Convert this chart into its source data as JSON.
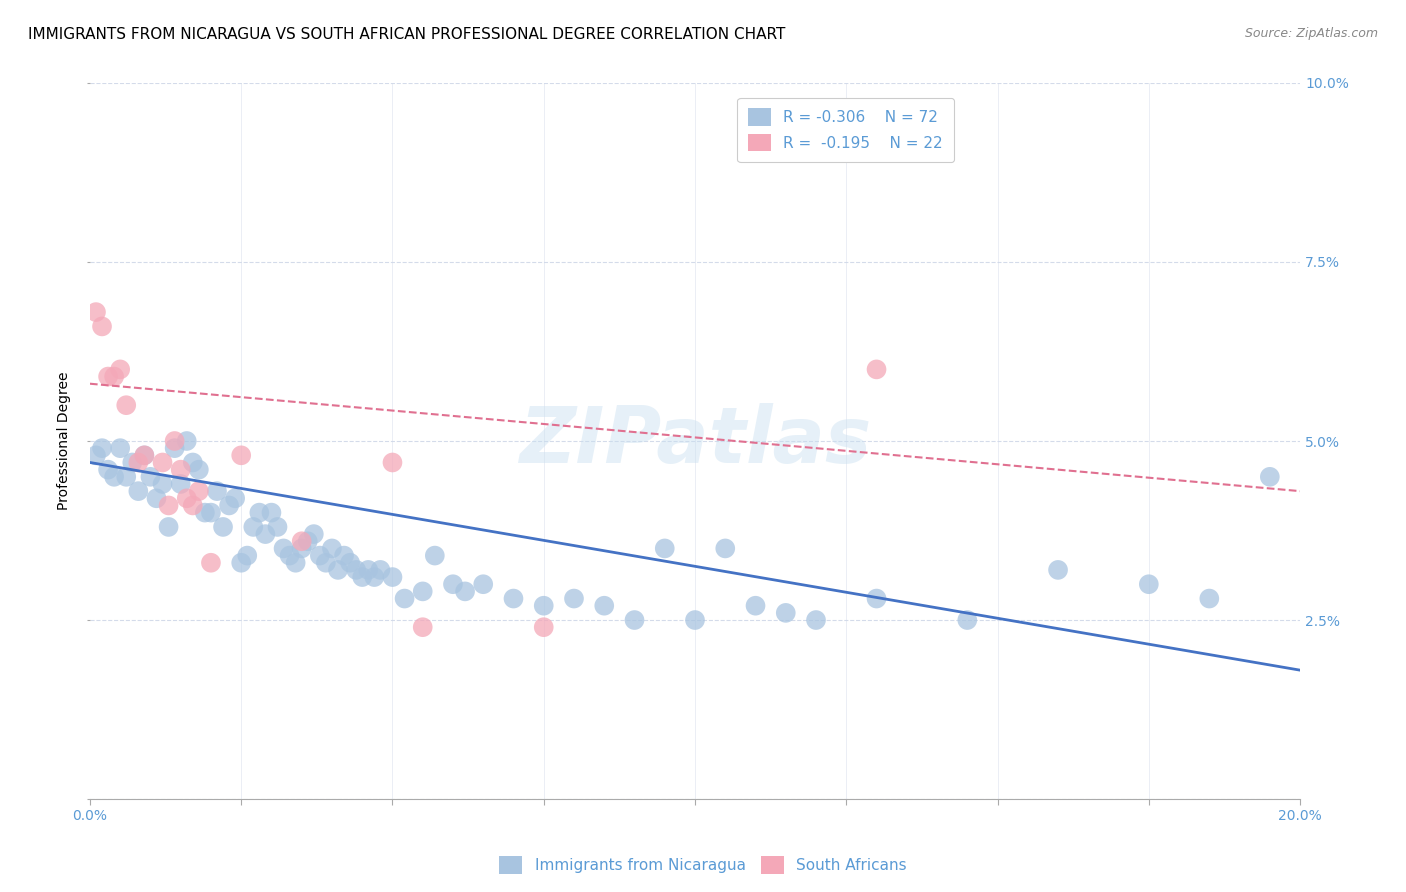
{
  "title": "IMMIGRANTS FROM NICARAGUA VS SOUTH AFRICAN PROFESSIONAL DEGREE CORRELATION CHART",
  "source": "Source: ZipAtlas.com",
  "ylabel": "Professional Degree",
  "watermark": "ZIPatlas",
  "blue_R": "-0.306",
  "blue_N": "72",
  "pink_R": "-0.195",
  "pink_N": "22",
  "blue_color": "#a8c4e0",
  "pink_color": "#f4a8b8",
  "blue_line_color": "#4472c4",
  "pink_line_color": "#e07090",
  "axis_color": "#5b9bd5",
  "grid_color": "#d0d8e8",
  "legend_label_blue": "Immigrants from Nicaragua",
  "legend_label_pink": "South Africans",
  "xlim": [
    0.0,
    0.2
  ],
  "ylim": [
    0.0,
    0.1
  ],
  "xticks": [
    0.0,
    0.025,
    0.05,
    0.075,
    0.1,
    0.125,
    0.15,
    0.175,
    0.2
  ],
  "yticks": [
    0.0,
    0.025,
    0.05,
    0.075,
    0.1
  ],
  "blue_scatter_x": [
    0.001,
    0.002,
    0.003,
    0.004,
    0.005,
    0.006,
    0.007,
    0.008,
    0.009,
    0.01,
    0.011,
    0.012,
    0.013,
    0.014,
    0.015,
    0.016,
    0.017,
    0.018,
    0.019,
    0.02,
    0.021,
    0.022,
    0.023,
    0.024,
    0.025,
    0.026,
    0.027,
    0.028,
    0.029,
    0.03,
    0.031,
    0.032,
    0.033,
    0.034,
    0.035,
    0.036,
    0.037,
    0.038,
    0.039,
    0.04,
    0.041,
    0.042,
    0.043,
    0.044,
    0.045,
    0.046,
    0.047,
    0.048,
    0.05,
    0.052,
    0.055,
    0.057,
    0.06,
    0.062,
    0.065,
    0.07,
    0.075,
    0.08,
    0.085,
    0.09,
    0.095,
    0.1,
    0.105,
    0.11,
    0.115,
    0.12,
    0.13,
    0.145,
    0.16,
    0.175,
    0.185,
    0.195
  ],
  "blue_scatter_y": [
    0.048,
    0.049,
    0.046,
    0.045,
    0.049,
    0.045,
    0.047,
    0.043,
    0.048,
    0.045,
    0.042,
    0.044,
    0.038,
    0.049,
    0.044,
    0.05,
    0.047,
    0.046,
    0.04,
    0.04,
    0.043,
    0.038,
    0.041,
    0.042,
    0.033,
    0.034,
    0.038,
    0.04,
    0.037,
    0.04,
    0.038,
    0.035,
    0.034,
    0.033,
    0.035,
    0.036,
    0.037,
    0.034,
    0.033,
    0.035,
    0.032,
    0.034,
    0.033,
    0.032,
    0.031,
    0.032,
    0.031,
    0.032,
    0.031,
    0.028,
    0.029,
    0.034,
    0.03,
    0.029,
    0.03,
    0.028,
    0.027,
    0.028,
    0.027,
    0.025,
    0.035,
    0.025,
    0.035,
    0.027,
    0.026,
    0.025,
    0.028,
    0.025,
    0.032,
    0.03,
    0.028,
    0.045
  ],
  "pink_scatter_x": [
    0.001,
    0.002,
    0.003,
    0.004,
    0.005,
    0.006,
    0.008,
    0.009,
    0.012,
    0.013,
    0.014,
    0.015,
    0.016,
    0.017,
    0.018,
    0.02,
    0.025,
    0.035,
    0.05,
    0.055,
    0.075,
    0.13
  ],
  "pink_scatter_y": [
    0.068,
    0.066,
    0.059,
    0.059,
    0.06,
    0.055,
    0.047,
    0.048,
    0.047,
    0.041,
    0.05,
    0.046,
    0.042,
    0.041,
    0.043,
    0.033,
    0.048,
    0.036,
    0.047,
    0.024,
    0.024,
    0.06
  ],
  "blue_line_y_start": 0.047,
  "blue_line_y_end": 0.018,
  "pink_line_y_start": 0.058,
  "pink_line_y_end": 0.043,
  "title_fontsize": 11,
  "source_fontsize": 9,
  "ylabel_fontsize": 10,
  "tick_fontsize": 10,
  "legend_fontsize": 11
}
